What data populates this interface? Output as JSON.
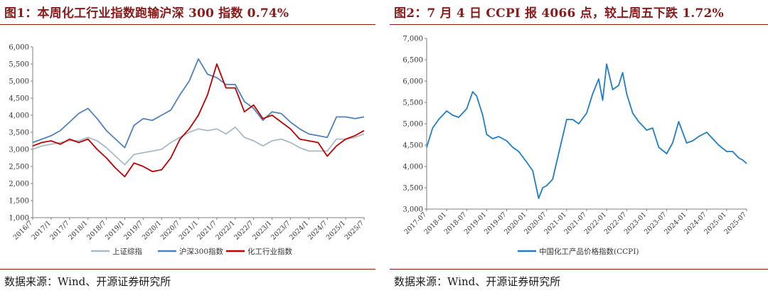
{
  "panel1": {
    "title": "图1：本周化工行业指数跑输沪深 300 指数 0.74%",
    "source": "数据来源：Wind、开源证券研究所"
  },
  "panel2": {
    "title": "图2：7 月 4 日 CCPI 报 4066 点，较上周五下跌 1.72%",
    "source": "数据来源：Wind、开源证券研究所"
  },
  "chart_data": [
    {
      "type": "line",
      "ylim": [
        1000,
        6000
      ],
      "yticks": [
        "1,000",
        "1,500",
        "2,000",
        "2,500",
        "3,000",
        "3,500",
        "4,000",
        "4,500",
        "5,000",
        "5,500",
        "6,000"
      ],
      "ytick_values": [
        1000,
        1500,
        2000,
        2500,
        3000,
        3500,
        4000,
        4500,
        5000,
        5500,
        6000
      ],
      "xticks": [
        "2016/7",
        "2017/1",
        "2017/7",
        "2018/1",
        "2018/7",
        "2019/1",
        "2019/7",
        "2020/1",
        "2020/7",
        "2021/1",
        "2021/7",
        "2022/1",
        "2022/7",
        "2023/1",
        "2023/7",
        "2024/1",
        "2024/7",
        "2025/1",
        "2025/7"
      ],
      "x_range": [
        0,
        18
      ],
      "legend_position": "bottom",
      "grid": false,
      "series": [
        {
          "name": "上证综指",
          "color": "#a9bac6",
          "x": [
            0,
            0.5,
            1,
            1.5,
            2,
            2.5,
            3,
            3.5,
            4,
            4.5,
            5,
            5.5,
            6,
            6.5,
            7,
            7.5,
            8,
            8.5,
            9,
            9.5,
            10,
            10.5,
            11,
            11.5,
            12,
            12.5,
            13,
            13.5,
            14,
            14.5,
            15,
            15.5,
            16,
            16.5,
            17,
            17.5,
            18
          ],
          "values": [
            3000,
            3100,
            3150,
            3200,
            3250,
            3250,
            3350,
            3250,
            3050,
            2800,
            2550,
            2850,
            2900,
            2950,
            3000,
            3200,
            3350,
            3500,
            3600,
            3550,
            3600,
            3450,
            3650,
            3350,
            3250,
            3100,
            3250,
            3300,
            3200,
            3050,
            2950,
            2950,
            2950,
            3300,
            3300,
            3350,
            3450
          ]
        },
        {
          "name": "沪深300指数",
          "color": "#4f81bd",
          "x": [
            0,
            0.5,
            1,
            1.5,
            2,
            2.5,
            3,
            3.5,
            4,
            4.5,
            5,
            5.5,
            6,
            6.5,
            7,
            7.5,
            8,
            8.5,
            9,
            9.5,
            10,
            10.5,
            11,
            11.5,
            12,
            12.5,
            13,
            13.5,
            14,
            14.5,
            15,
            15.5,
            16,
            16.5,
            17,
            17.5,
            18
          ],
          "values": [
            3200,
            3300,
            3400,
            3550,
            3800,
            4050,
            4200,
            3900,
            3550,
            3300,
            3050,
            3700,
            3900,
            3850,
            4000,
            4150,
            4600,
            5000,
            5650,
            5200,
            5100,
            4900,
            4900,
            4400,
            4200,
            3850,
            4100,
            4050,
            3800,
            3600,
            3450,
            3400,
            3350,
            3950,
            3950,
            3900,
            3950
          ]
        },
        {
          "name": "化工行业指数",
          "color": "#c00000",
          "x": [
            0,
            0.5,
            1,
            1.5,
            2,
            2.5,
            3,
            3.5,
            4,
            4.5,
            5,
            5.5,
            6,
            6.5,
            7,
            7.5,
            8,
            8.5,
            9,
            9.5,
            10,
            10.5,
            11,
            11.5,
            12,
            12.5,
            13,
            13.5,
            14,
            14.5,
            15,
            15.5,
            16,
            16.5,
            17,
            17.5,
            18
          ],
          "values": [
            3100,
            3200,
            3250,
            3150,
            3300,
            3200,
            3300,
            3000,
            2750,
            2450,
            2200,
            2600,
            2500,
            2350,
            2400,
            2750,
            3300,
            3600,
            4000,
            4600,
            5500,
            4800,
            4800,
            4100,
            4300,
            3900,
            4000,
            3800,
            3600,
            3300,
            3250,
            3200,
            2800,
            3100,
            3300,
            3400,
            3550
          ]
        }
      ]
    },
    {
      "type": "line",
      "ylim": [
        3000,
        7000
      ],
      "yticks": [
        "3,000",
        "3,500",
        "4,000",
        "4,500",
        "5,000",
        "5,500",
        "6,000",
        "6,500",
        "7,000"
      ],
      "ytick_values": [
        3000,
        3500,
        4000,
        4500,
        5000,
        5500,
        6000,
        6500,
        7000
      ],
      "xticks": [
        "2017-07",
        "2018-01",
        "2018-07",
        "2019-01",
        "2019-07",
        "2020-01",
        "2020-07",
        "2021-01",
        "2021-07",
        "2022-01",
        "2022-07",
        "2023-01",
        "2023-07",
        "2024-01",
        "2024-07",
        "2025-01",
        "2025-07"
      ],
      "x_range": [
        0,
        16
      ],
      "legend_position": "bottom",
      "grid": false,
      "series": [
        {
          "name": "中国化工产品价格指数(CCPI)",
          "color": "#1f7fc4",
          "x": [
            0,
            0.3,
            0.6,
            1,
            1.3,
            1.6,
            2,
            2.3,
            2.5,
            2.8,
            3,
            3.3,
            3.6,
            4,
            4.3,
            4.6,
            5,
            5.3,
            5.6,
            5.8,
            6,
            6.3,
            6.6,
            7,
            7.3,
            7.6,
            8,
            8.3,
            8.6,
            8.8,
            9,
            9.3,
            9.6,
            9.8,
            10,
            10.3,
            10.6,
            11,
            11.3,
            11.6,
            12,
            12.3,
            12.6,
            13,
            13.3,
            13.6,
            14,
            14.3,
            14.6,
            15,
            15.3,
            15.6,
            15.8,
            16
          ],
          "values": [
            4450,
            4900,
            5100,
            5300,
            5200,
            5150,
            5350,
            5750,
            5650,
            5200,
            4750,
            4650,
            4700,
            4600,
            4450,
            4350,
            4100,
            3900,
            3250,
            3500,
            3550,
            3700,
            4300,
            5100,
            5100,
            5000,
            5250,
            5700,
            6050,
            5550,
            6400,
            5800,
            5900,
            6200,
            5700,
            5250,
            5050,
            4850,
            4900,
            4450,
            4300,
            4550,
            5050,
            4550,
            4600,
            4700,
            4800,
            4650,
            4500,
            4350,
            4350,
            4200,
            4150,
            4066
          ]
        }
      ]
    }
  ]
}
